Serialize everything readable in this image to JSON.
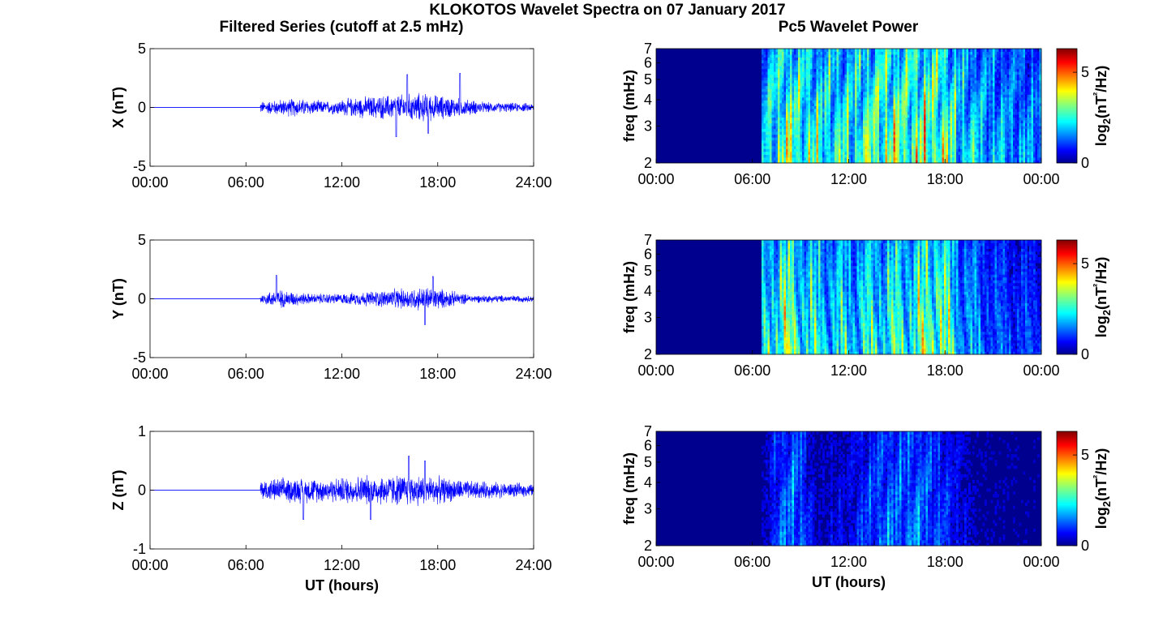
{
  "title": "KLOKOTOS Wavelet Spectra on 07 January 2017",
  "left_title": "Filtered Series (cutoff at 2.5 mHz)",
  "right_title": "Pc5 Wavelet Power",
  "colors": {
    "series_line": "#0000ff",
    "spectrogram_background": "#00008f",
    "colormap": "jet"
  },
  "chart_data": [
    {
      "type": "line",
      "component": "X",
      "ylabel": "X (nT)",
      "xlabel": "",
      "ylim": [
        -5,
        5
      ],
      "yticks": [
        "5",
        "0",
        "-5"
      ],
      "xticks": [
        "00:00",
        "06:00",
        "12:00",
        "18:00",
        "24:00"
      ],
      "x_hours_range": [
        0,
        24
      ],
      "flat_until_hour": 6.9,
      "noise_amplitude_nT": [
        [
          7,
          0.6
        ],
        [
          9,
          0.9
        ],
        [
          11,
          0.6
        ],
        [
          13,
          1.0
        ],
        [
          15,
          1.2
        ],
        [
          17,
          1.4
        ],
        [
          19,
          1.0
        ],
        [
          21,
          0.5
        ],
        [
          24,
          0.4
        ]
      ],
      "peak_excursions_nT": [
        [
          16.1,
          2.8
        ],
        [
          19.4,
          2.9
        ],
        [
          15.4,
          -2.5
        ],
        [
          17.4,
          -2.2
        ]
      ]
    },
    {
      "type": "line",
      "component": "Y",
      "ylabel": "Y (nT)",
      "xlabel": "",
      "ylim": [
        -5,
        5
      ],
      "yticks": [
        "5",
        "0",
        "-5"
      ],
      "xticks": [
        "00:00",
        "06:00",
        "12:00",
        "18:00",
        "24:00"
      ],
      "x_hours_range": [
        0,
        24
      ],
      "flat_until_hour": 6.9,
      "noise_amplitude_nT": [
        [
          7,
          0.5
        ],
        [
          8,
          0.9
        ],
        [
          10,
          0.5
        ],
        [
          12,
          0.5
        ],
        [
          15,
          0.9
        ],
        [
          17.5,
          1.2
        ],
        [
          20,
          0.4
        ],
        [
          24,
          0.3
        ]
      ],
      "peak_excursions_nT": [
        [
          7.9,
          2.0
        ],
        [
          17.7,
          1.9
        ],
        [
          17.2,
          -2.2
        ]
      ]
    },
    {
      "type": "line",
      "component": "Z",
      "ylabel": "Z (nT)",
      "xlabel": "UT (hours)",
      "ylim": [
        -1,
        1
      ],
      "yticks": [
        "1",
        "0",
        "-1"
      ],
      "xticks": [
        "00:00",
        "06:00",
        "12:00",
        "18:00",
        "24:00"
      ],
      "x_hours_range": [
        0,
        24
      ],
      "flat_until_hour": 6.9,
      "noise_amplitude_nT": [
        [
          7,
          0.2
        ],
        [
          9,
          0.25
        ],
        [
          11,
          0.22
        ],
        [
          13,
          0.28
        ],
        [
          15,
          0.3
        ],
        [
          17,
          0.3
        ],
        [
          20,
          0.18
        ],
        [
          24,
          0.12
        ]
      ],
      "peak_excursions_nT": [
        [
          16.2,
          0.58
        ],
        [
          17.2,
          0.5
        ],
        [
          9.6,
          -0.5
        ],
        [
          13.8,
          -0.5
        ]
      ]
    },
    {
      "type": "heatmap",
      "component": "X",
      "ylabel": "freq (mHz)",
      "xlabel": "",
      "y_scale": "log",
      "ylim_mHz": [
        2,
        7
      ],
      "yticks": [
        "2",
        "3",
        "4",
        "5",
        "6",
        "7"
      ],
      "xticks": [
        "00:00",
        "06:00",
        "12:00",
        "18:00",
        "00:00"
      ],
      "colorbar_label": "log2(nT²/Hz)",
      "colorbar_ticks": [
        "0",
        "5"
      ],
      "colorbar_range": [
        0,
        6.3
      ],
      "activity_start_hour": 6.6,
      "activity_level_vs_hour": [
        [
          6.6,
          3.5
        ],
        [
          8,
          5.2
        ],
        [
          10,
          4.3
        ],
        [
          12,
          4.2
        ],
        [
          14,
          5.3
        ],
        [
          16,
          5.2
        ],
        [
          17.5,
          5.6
        ],
        [
          19,
          3.8
        ],
        [
          21,
          3.0
        ],
        [
          23.5,
          2.6
        ]
      ]
    },
    {
      "type": "heatmap",
      "component": "Y",
      "ylabel": "freq (mHz)",
      "xlabel": "",
      "y_scale": "log",
      "ylim_mHz": [
        2,
        7
      ],
      "yticks": [
        "2",
        "3",
        "4",
        "5",
        "6",
        "7"
      ],
      "xticks": [
        "00:00",
        "06:00",
        "12:00",
        "18:00",
        "00:00"
      ],
      "colorbar_label": "log2(nT²/Hz)",
      "colorbar_ticks": [
        "0",
        "5"
      ],
      "colorbar_range": [
        0,
        6.3
      ],
      "activity_start_hour": 6.6,
      "activity_level_vs_hour": [
        [
          6.6,
          3.2
        ],
        [
          7.8,
          5.4
        ],
        [
          10,
          3.8
        ],
        [
          12,
          3.6
        ],
        [
          14,
          4.2
        ],
        [
          16,
          4.4
        ],
        [
          17.5,
          5.8
        ],
        [
          19,
          3.0
        ],
        [
          21,
          2.0
        ],
        [
          23.5,
          1.6
        ]
      ]
    },
    {
      "type": "heatmap",
      "component": "Z",
      "ylabel": "freq (mHz)",
      "xlabel": "UT (hours)",
      "y_scale": "log",
      "ylim_mHz": [
        2,
        7
      ],
      "yticks": [
        "2",
        "3",
        "4",
        "5",
        "6",
        "7"
      ],
      "xticks": [
        "00:00",
        "06:00",
        "12:00",
        "18:00",
        "00:00"
      ],
      "colorbar_label": "log2(nT²/Hz)",
      "colorbar_ticks": [
        "0",
        "5"
      ],
      "colorbar_range": [
        0,
        6.3
      ],
      "activity_start_hour": 6.6,
      "activity_level_vs_hour": [
        [
          6.6,
          0.4
        ],
        [
          7.5,
          1.8
        ],
        [
          8.7,
          2.6
        ],
        [
          10,
          0.6
        ],
        [
          12,
          1.0
        ],
        [
          14,
          2.2
        ],
        [
          16.5,
          2.4
        ],
        [
          18,
          1.6
        ],
        [
          20,
          0.4
        ],
        [
          23.5,
          0.2
        ]
      ]
    }
  ]
}
